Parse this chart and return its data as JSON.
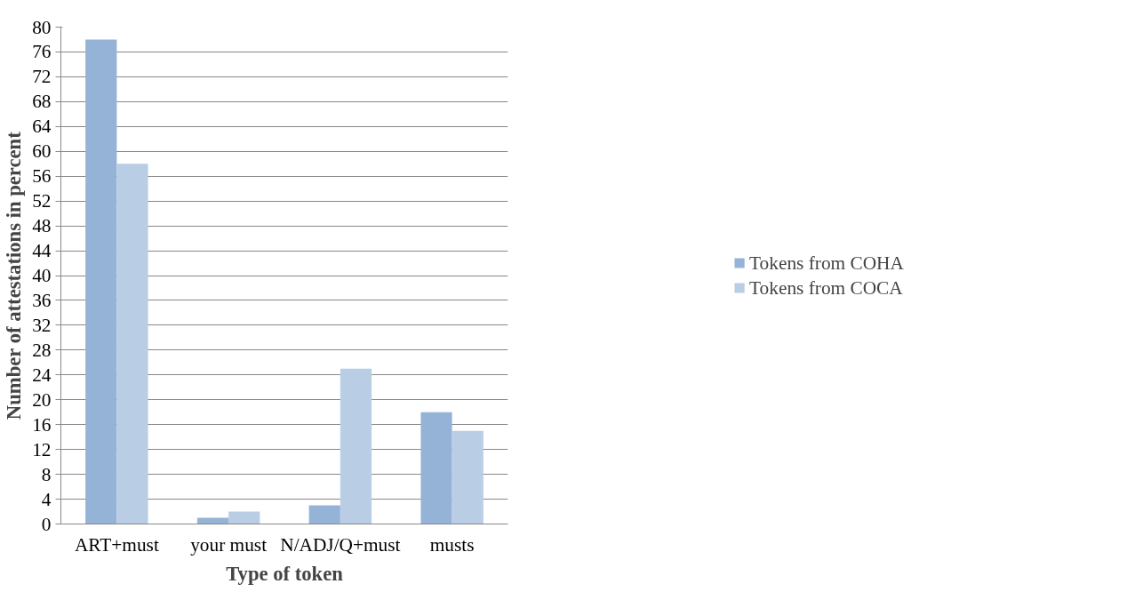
{
  "chart_data": {
    "type": "bar",
    "xlabel": "Type of token",
    "ylabel": "Number of attestations in percent",
    "categories": [
      "ART+must",
      "your must",
      "N/ADJ/Q+must",
      "musts"
    ],
    "series": [
      {
        "name": "Tokens from COHA",
        "color": "#95b3d7",
        "values": [
          78,
          1,
          3,
          18
        ]
      },
      {
        "name": "Tokens from COCA",
        "color": "#b9cde5",
        "values": [
          58,
          2,
          25,
          15
        ]
      }
    ],
    "ylim": [
      0,
      80
    ],
    "yticks": [
      0,
      4,
      8,
      12,
      16,
      20,
      24,
      28,
      32,
      36,
      40,
      44,
      48,
      52,
      56,
      60,
      64,
      68,
      72,
      76,
      80
    ],
    "grid": "y",
    "legend": "right"
  }
}
